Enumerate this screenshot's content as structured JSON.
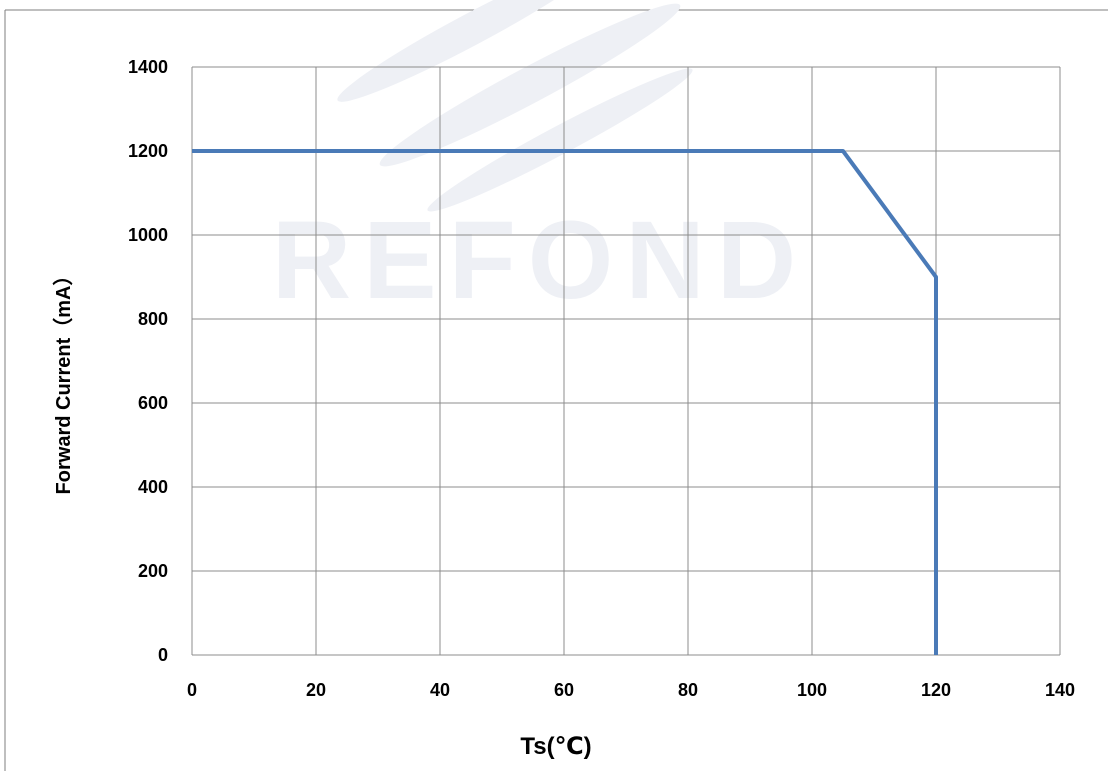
{
  "chart_data": {
    "type": "line",
    "xlabel": "Ts(℃)",
    "ylabel": "Forward Current（mA）",
    "xlim": [
      0,
      140
    ],
    "ylim": [
      0,
      1400
    ],
    "x_ticks": [
      0,
      20,
      40,
      60,
      80,
      100,
      120,
      140
    ],
    "y_ticks": [
      0,
      200,
      400,
      600,
      800,
      1000,
      1200,
      1400
    ],
    "grid": true,
    "legend": "none",
    "series": [
      {
        "color": "#4a7ab7",
        "points": [
          {
            "x": 0,
            "y": 1200
          },
          {
            "x": 105,
            "y": 1200
          },
          {
            "x": 120,
            "y": 900
          },
          {
            "x": 120,
            "y": 0
          }
        ]
      }
    ]
  },
  "watermark": {
    "text": "REFOND",
    "color": "#eef0f5"
  },
  "colors": {
    "grid": "#8c8c8c",
    "frame": "#7f7f7f",
    "line": "#4a7ab7"
  }
}
